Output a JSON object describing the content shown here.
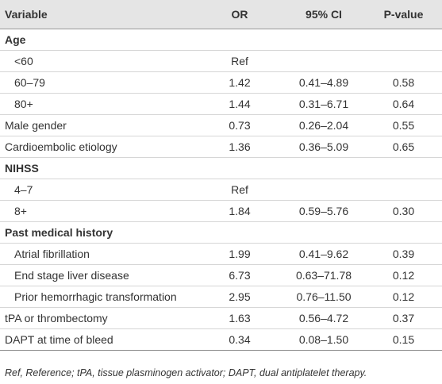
{
  "table": {
    "header": [
      "Variable",
      "OR",
      "95% CI",
      "P-value"
    ],
    "rows": [
      {
        "label": "Age",
        "section": true
      },
      {
        "label": "<60",
        "indent": true,
        "or": "Ref"
      },
      {
        "label": "60–79",
        "indent": true,
        "or": "1.42",
        "ci": "0.41–4.89",
        "p": "0.58"
      },
      {
        "label": "80+",
        "indent": true,
        "or": "1.44",
        "ci": "0.31–6.71",
        "p": "0.64"
      },
      {
        "label": "Male gender",
        "or": "0.73",
        "ci": "0.26–2.04",
        "p": "0.55"
      },
      {
        "label": "Cardioembolic etiology",
        "or": "1.36",
        "ci": "0.36–5.09",
        "p": "0.65"
      },
      {
        "label": "NIHSS",
        "section": true
      },
      {
        "label": "4–7",
        "indent": true,
        "or": "Ref"
      },
      {
        "label": "8+",
        "indent": true,
        "or": "1.84",
        "ci": "0.59–5.76",
        "p": "0.30"
      },
      {
        "label": "Past medical history",
        "section": true
      },
      {
        "label": "Atrial fibrillation",
        "indent": true,
        "or": "1.99",
        "ci": "0.41–9.62",
        "p": "0.39"
      },
      {
        "label": "End stage liver disease",
        "indent": true,
        "or": "6.73",
        "ci": "0.63–71.78",
        "p": "0.12"
      },
      {
        "label": "Prior hemorrhagic transformation",
        "indent": true,
        "or": "2.95",
        "ci": "0.76–11.50",
        "p": "0.12"
      },
      {
        "label": "tPA or thrombectomy",
        "or": "1.63",
        "ci": "0.56–4.72",
        "p": "0.37"
      },
      {
        "label": "DAPT at time of bleed",
        "or": "0.34",
        "ci": "0.08–1.50",
        "p": "0.15"
      }
    ],
    "footnote": "Ref, Reference; tPA, tissue plasminogen activator; DAPT, dual antiplatelet therapy."
  }
}
